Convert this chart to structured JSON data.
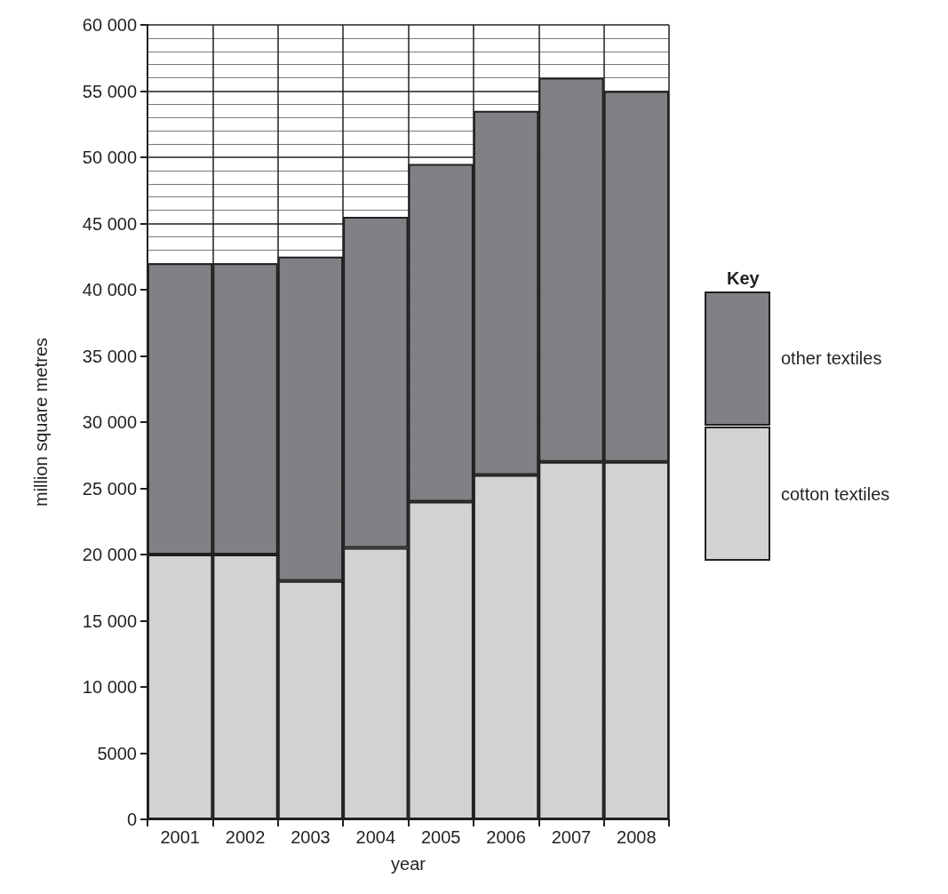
{
  "chart_data": {
    "type": "bar",
    "stacked": true,
    "xlabel": "year",
    "ylabel": "million square metres",
    "legend_title": "Key",
    "legend": "right",
    "categories": [
      "2001",
      "2002",
      "2003",
      "2004",
      "2005",
      "2006",
      "2007",
      "2008"
    ],
    "series": [
      {
        "name": "cotton textiles",
        "color": "#d1d2d4",
        "values": [
          20000,
          20000,
          18000,
          20500,
          24000,
          26000,
          27000,
          27000
        ]
      },
      {
        "name": "other textiles",
        "color": "#808184",
        "values": [
          22000,
          22000,
          24500,
          25000,
          25500,
          27500,
          29000,
          28000
        ]
      }
    ],
    "ylim": [
      0,
      60000
    ],
    "yticks": [
      0,
      5000,
      {
        "value": 10000,
        "label": "10 000"
      },
      {
        "value": 15000,
        "label": "15 000"
      },
      {
        "value": 20000,
        "label": "20 000"
      },
      {
        "value": 25000,
        "label": "25 000"
      },
      {
        "value": 30000,
        "label": "30 000"
      },
      {
        "value": 35000,
        "label": "35 000"
      },
      {
        "value": 40000,
        "label": "40 000"
      },
      {
        "value": 45000,
        "label": "45 000"
      },
      {
        "value": 50000,
        "label": "50 000"
      },
      {
        "value": 55000,
        "label": "55 000"
      },
      {
        "value": 60000,
        "label": "60 000"
      }
    ],
    "grid": true
  }
}
